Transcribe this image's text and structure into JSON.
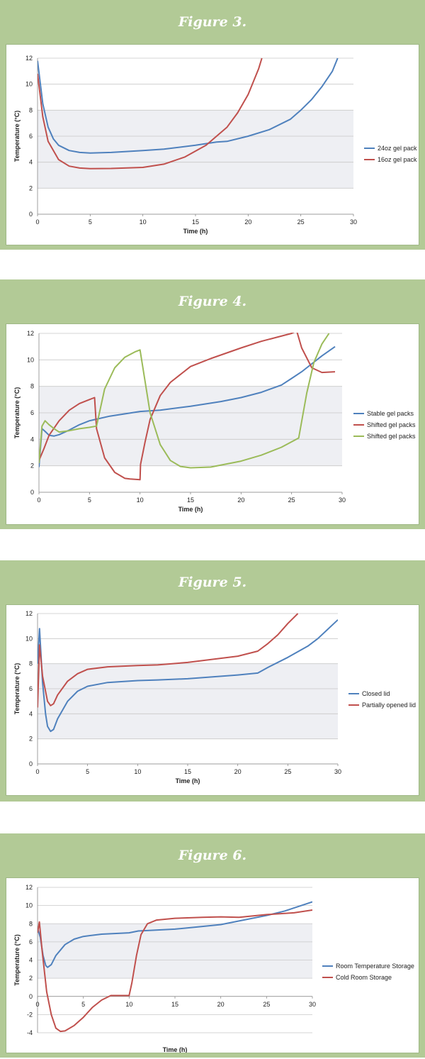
{
  "chart_data": [
    {
      "type": "line",
      "title": "Figure 3.",
      "xlabel": "Time (h)",
      "ylabel": "Temperature (°C)",
      "xlim": [
        0,
        30
      ],
      "ylim": [
        0,
        12
      ],
      "xticks": [
        "0",
        "5",
        "10",
        "15",
        "20",
        "25",
        "30"
      ],
      "yticks": [
        "0",
        "2",
        "4",
        "6",
        "8",
        "10",
        "12"
      ],
      "shaded_band": [
        2,
        8
      ],
      "legend_position": "right",
      "series": [
        {
          "name": "24oz gel pack",
          "color": "#4f81bd",
          "x": [
            0,
            0.5,
            1,
            1.5,
            2,
            3,
            4,
            5,
            7,
            10,
            12,
            15,
            17,
            18,
            20,
            22,
            24,
            25,
            26,
            27,
            28,
            28.5
          ],
          "y": [
            11.8,
            8.5,
            6.7,
            5.8,
            5.3,
            4.9,
            4.75,
            4.7,
            4.75,
            4.9,
            5.0,
            5.3,
            5.55,
            5.6,
            6.0,
            6.5,
            7.3,
            8.0,
            8.8,
            9.8,
            11.0,
            12.0
          ]
        },
        {
          "name": "16oz gel pack",
          "color": "#c0504d",
          "x": [
            0,
            0.5,
            1,
            2,
            3,
            4,
            5,
            7,
            10,
            12,
            14,
            16,
            18,
            19,
            20,
            21,
            21.3
          ],
          "y": [
            10.8,
            7.5,
            5.6,
            4.2,
            3.7,
            3.55,
            3.5,
            3.52,
            3.6,
            3.85,
            4.4,
            5.3,
            6.7,
            7.8,
            9.2,
            11.2,
            12.0
          ]
        }
      ]
    },
    {
      "type": "line",
      "title": "Figure 4.",
      "xlabel": "Time (h)",
      "ylabel": "Temperature (°C)",
      "xlim": [
        0,
        30
      ],
      "ylim": [
        0,
        12
      ],
      "xticks": [
        "0",
        "5",
        "10",
        "15",
        "20",
        "25",
        "30"
      ],
      "yticks": [
        "0",
        "2",
        "4",
        "6",
        "8",
        "10",
        "12"
      ],
      "shaded_band": [
        2,
        8
      ],
      "legend_position": "right",
      "series": [
        {
          "name": "Stable gel packs",
          "color": "#4f81bd",
          "x": [
            0,
            0.3,
            0.6,
            1,
            1.5,
            2,
            3,
            4,
            5,
            7,
            10,
            12,
            15,
            18,
            20,
            22,
            24,
            25,
            26,
            27,
            28,
            29.3
          ],
          "y": [
            1.9,
            4.8,
            4.6,
            4.3,
            4.25,
            4.35,
            4.7,
            5.1,
            5.4,
            5.75,
            6.1,
            6.2,
            6.5,
            6.85,
            7.15,
            7.55,
            8.1,
            8.6,
            9.1,
            9.7,
            10.3,
            11.0
          ]
        },
        {
          "name": "Shifted gel packs",
          "color": "#c0504d",
          "x": [
            0,
            0.5,
            1,
            2,
            3,
            4,
            5,
            5.5,
            5.7,
            6.5,
            7.5,
            8.5,
            9,
            10,
            10.05,
            10.5,
            11,
            12,
            13,
            15,
            17,
            20,
            22,
            25,
            25.5,
            26,
            27,
            28,
            29.3
          ],
          "y": [
            2.4,
            3.3,
            4.3,
            5.4,
            6.2,
            6.7,
            7.0,
            7.15,
            4.8,
            2.6,
            1.5,
            1.05,
            1.0,
            0.95,
            2.1,
            3.8,
            5.5,
            7.3,
            8.3,
            9.5,
            10.1,
            10.9,
            11.4,
            12.0,
            12.2,
            10.9,
            9.4,
            9.05,
            9.1
          ]
        },
        {
          "name": "Shifted gel packs",
          "color": "#9bbb59",
          "x": [
            0,
            0.3,
            0.6,
            1,
            1.5,
            2,
            3,
            4,
            5,
            5.7,
            6.5,
            7.5,
            8.5,
            9.5,
            10,
            11,
            12,
            13,
            14,
            15,
            17,
            20,
            22,
            24,
            25.7,
            26.5,
            27.2,
            28,
            28.7
          ],
          "y": [
            2.2,
            5.0,
            5.4,
            5.1,
            4.8,
            4.55,
            4.65,
            4.8,
            4.9,
            5.0,
            7.8,
            9.4,
            10.2,
            10.6,
            10.75,
            6.0,
            3.6,
            2.4,
            1.95,
            1.85,
            1.9,
            2.35,
            2.8,
            3.4,
            4.1,
            7.5,
            9.8,
            11.2,
            12.0
          ]
        }
      ]
    },
    {
      "type": "line",
      "title": "Figure 5.",
      "xlabel": "Time (h)",
      "ylabel": "Temperature (°C)",
      "xlim": [
        0,
        30
      ],
      "ylim": [
        0,
        12
      ],
      "xticks": [
        "0",
        "5",
        "10",
        "15",
        "20",
        "25",
        "30"
      ],
      "yticks": [
        "0",
        "2",
        "4",
        "6",
        "8",
        "10",
        "12"
      ],
      "shaded_band": [
        2,
        8
      ],
      "legend_position": "right",
      "series": [
        {
          "name": "Closed lid",
          "color": "#4f81bd",
          "x": [
            0,
            0.2,
            0.5,
            0.8,
            1,
            1.3,
            1.6,
            2,
            3,
            4,
            5,
            7,
            10,
            12,
            15,
            20,
            22,
            23,
            25,
            27,
            28,
            30
          ],
          "y": [
            8.0,
            10.8,
            6.5,
            4.0,
            3.0,
            2.6,
            2.75,
            3.6,
            5.0,
            5.8,
            6.2,
            6.5,
            6.65,
            6.7,
            6.8,
            7.1,
            7.25,
            7.7,
            8.5,
            9.4,
            10.0,
            11.5
          ]
        },
        {
          "name": "Partially opened lid",
          "color": "#c0504d",
          "x": [
            0,
            0.2,
            0.5,
            1,
            1.3,
            1.6,
            2,
            3,
            4,
            5,
            7,
            10,
            12,
            15,
            18,
            20,
            22,
            23,
            24,
            25,
            26
          ],
          "y": [
            4.5,
            9.5,
            7.0,
            5.0,
            4.65,
            4.8,
            5.5,
            6.6,
            7.2,
            7.55,
            7.75,
            7.85,
            7.9,
            8.1,
            8.4,
            8.6,
            9.0,
            9.6,
            10.3,
            11.2,
            12.0
          ]
        }
      ]
    },
    {
      "type": "line",
      "title": "Figure 6.",
      "xlabel": "Time (h)",
      "ylabel": "Temperature (°C)",
      "xlim": [
        0,
        30
      ],
      "ylim": [
        -4,
        12
      ],
      "xticks": [
        "0",
        "5",
        "10",
        "15",
        "20",
        "25",
        "30"
      ],
      "yticks": [
        "-4",
        "-2",
        "0",
        "2",
        "4",
        "6",
        "8",
        "10",
        "12"
      ],
      "shaded_band": [
        2,
        8
      ],
      "legend_position": "right",
      "series": [
        {
          "name": "Room Temperature Storage",
          "color": "#4f81bd",
          "x": [
            0,
            0.3,
            0.6,
            0.9,
            1.1,
            1.5,
            2,
            3,
            4,
            5,
            7,
            10,
            11,
            12,
            15,
            18,
            20,
            22,
            25,
            27,
            30
          ],
          "y": [
            7.5,
            6.5,
            4.5,
            3.4,
            3.2,
            3.5,
            4.5,
            5.7,
            6.3,
            6.6,
            6.85,
            7.0,
            7.2,
            7.25,
            7.4,
            7.7,
            7.9,
            8.3,
            8.9,
            9.4,
            10.4
          ]
        },
        {
          "name": "Cold Room Storage",
          "color": "#c0504d",
          "x": [
            0,
            0.2,
            0.5,
            1,
            1.5,
            2,
            2.5,
            3,
            4,
            5,
            6,
            7,
            8,
            9,
            10,
            10.3,
            10.8,
            11.3,
            12,
            13,
            15,
            18,
            20,
            22,
            25,
            28,
            30
          ],
          "y": [
            7.0,
            8.2,
            5.0,
            0.5,
            -2.0,
            -3.5,
            -3.85,
            -3.8,
            -3.2,
            -2.3,
            -1.2,
            -0.4,
            0.1,
            0.1,
            0.1,
            1.5,
            4.5,
            6.8,
            8.0,
            8.4,
            8.6,
            8.7,
            8.75,
            8.7,
            9.0,
            9.2,
            9.5
          ]
        }
      ]
    }
  ]
}
